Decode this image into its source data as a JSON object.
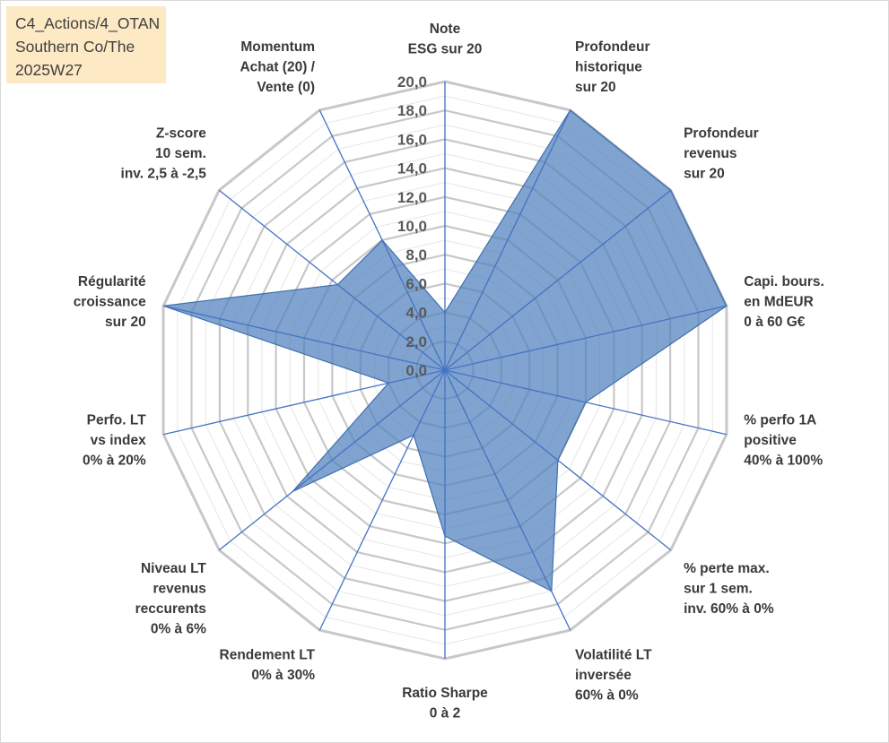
{
  "info_box": {
    "line1": "C4_Actions/4_OTAN",
    "line2": "Southern Co/The",
    "line3": "2025W27"
  },
  "chart_data": {
    "type": "radar",
    "title": "",
    "rmin": 0,
    "rmax": 20,
    "tick_labels": [
      "0,0",
      "2,0",
      "4,0",
      "6,0",
      "8,0",
      "10,0",
      "12,0",
      "14,0",
      "16,0",
      "18,0",
      "20,0"
    ],
    "tick_values": [
      0,
      2,
      4,
      6,
      8,
      10,
      12,
      14,
      16,
      18,
      20
    ],
    "minor_step": 1,
    "grid": true,
    "legend": "none",
    "fill_color": "#4f81bd",
    "grid_color": "#c8c8c8",
    "spoke_color": "#4472c4",
    "axes": [
      {
        "label": [
          "Note",
          "ESG sur 20"
        ],
        "value": 4.0
      },
      {
        "label": [
          "Profondeur",
          "historique",
          "sur 20"
        ],
        "value": 20.0
      },
      {
        "label": [
          "Profondeur",
          "revenus",
          "sur 20"
        ],
        "value": 20.0
      },
      {
        "label": [
          "Capi. bours.",
          "en MdEUR",
          "0 à 60 G€"
        ],
        "value": 20.0
      },
      {
        "label": [
          "% perfo 1A",
          "positive",
          "40% à 100%"
        ],
        "value": 10.0
      },
      {
        "label": [
          "% perte max.",
          "sur 1 sem.",
          "inv. 60% à 0%"
        ],
        "value": 10.0
      },
      {
        "label": [
          "Volatilité LT",
          "inversée",
          "60% à 0%"
        ],
        "value": 17.0
      },
      {
        "label": [
          "Ratio Sharpe",
          "0 à 2"
        ],
        "value": 11.5
      },
      {
        "label": [
          "Rendement LT",
          "0% à 30%"
        ],
        "value": 5.0
      },
      {
        "label": [
          "Niveau LT",
          "revenus",
          "reccurents",
          "0% à 6%"
        ],
        "value": 13.5
      },
      {
        "label": [
          "Perfo. LT",
          "vs index",
          "0% à 20%"
        ],
        "value": 4.0
      },
      {
        "label": [
          "Régularité",
          "croissance",
          "sur 20"
        ],
        "value": 20.0
      },
      {
        "label": [
          "Z-score",
          "10 sem.",
          "inv. 2,5 à -2,5"
        ],
        "value": 9.5
      },
      {
        "label": [
          "Momentum",
          "Achat (20) /",
          "Vente (0)"
        ],
        "value": 10.0
      }
    ]
  }
}
